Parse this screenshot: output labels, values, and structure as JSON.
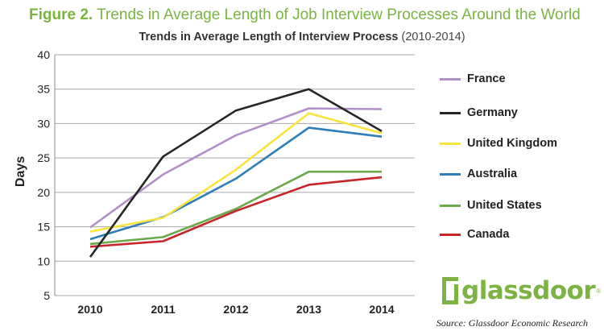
{
  "figure": {
    "label": "Figure 2.",
    "title": "Trends in Average Length of Job Interview Processes Around the World"
  },
  "chart_data": {
    "type": "line",
    "title": "Trends in Average Length of Interview Process",
    "title_range": "(2010-2014)",
    "xlabel": "",
    "ylabel": "Days",
    "x": [
      "2010",
      "2011",
      "2012",
      "2013",
      "2014"
    ],
    "ylim": [
      5,
      40
    ],
    "yticks": [
      5,
      10,
      15,
      20,
      25,
      30,
      35,
      40
    ],
    "grid": "horizontal",
    "legend_position": "right",
    "series": [
      {
        "name": "France",
        "color": "#b090c8",
        "values": [
          14.9,
          22.6,
          28.3,
          32.2,
          32.1
        ]
      },
      {
        "name": "Germany",
        "color": "#262626",
        "values": [
          10.6,
          25.2,
          31.9,
          35.0,
          28.9
        ]
      },
      {
        "name": "United Kingdom",
        "color": "#f8e43a",
        "values": [
          14.3,
          16.3,
          23.3,
          31.5,
          28.6
        ]
      },
      {
        "name": "Australia",
        "color": "#2e7eb8",
        "values": [
          13.2,
          16.4,
          22.0,
          29.4,
          28.1
        ]
      },
      {
        "name": "United States",
        "color": "#6aaa4b",
        "values": [
          12.5,
          13.5,
          17.6,
          23.0,
          23.0
        ]
      },
      {
        "name": "Canada",
        "color": "#c8252b",
        "values": [
          12.1,
          12.9,
          17.3,
          21.1,
          22.2
        ]
      }
    ]
  },
  "logo": {
    "text": "glassdoor",
    "mark": "®"
  },
  "source": "Source: Glassdoor Economic Research"
}
